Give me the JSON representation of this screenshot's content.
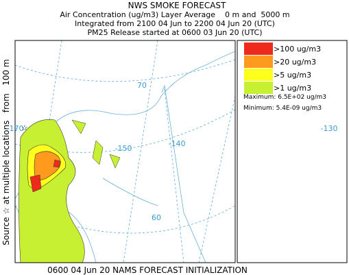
{
  "header": {
    "title": "NWS SMOKE FORECAST",
    "lines": [
      "Air Concentration (ug/m3) Layer Average    0 m and  5000 m",
      "Integrated from 2100 04 Jun to 2200 04 Jun 20 (UTC)",
      "PM25 Release started at 0600 03 Jun 20 (UTC)"
    ]
  },
  "side_label": "Source ☆ at multiple locations   from   100 m",
  "map_labels": [
    "70",
    "-170",
    "-150",
    "-140",
    "-130",
    "60"
  ],
  "legend": {
    "items": [
      {
        "label": ">100 ug/m3",
        "color": "#ee2a1c"
      },
      {
        "label": ">20 ug/m3",
        "color": "#ff9a1e"
      },
      {
        "label": ">5 ug/m3",
        "color": "#ffff1e"
      },
      {
        "label": ">1 ug/m3",
        "color": "#c8f032"
      }
    ],
    "maximum": "Maximum: 6.5E+02 ug/m3",
    "minimum": "Minimum: 5.4E-09 ug/m3"
  },
  "footer": "0600 04 Jun 20 NAMS FORECAST INITIALIZATION"
}
